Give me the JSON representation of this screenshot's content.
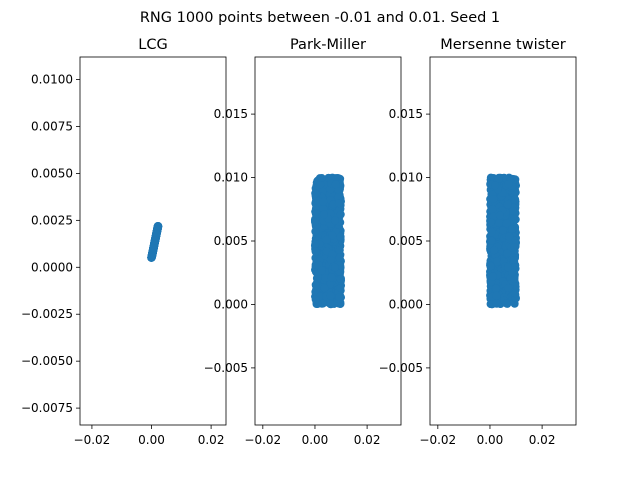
{
  "figure": {
    "suptitle": "RNG 1000 points between -0.01 and 0.01. Seed 1"
  },
  "style": {
    "marker_color": "#1f77b4",
    "axis_color": "#000000",
    "background": "#ffffff"
  },
  "chart_data": [
    {
      "type": "scatter",
      "title": "LCG",
      "xlabel": "",
      "ylabel": "",
      "xlim": [
        -0.024,
        0.025
      ],
      "ylim": [
        -0.0084,
        0.0112
      ],
      "xticks": [
        -0.02,
        0.0,
        0.02
      ],
      "xtick_labels": [
        "−0.02",
        "0.00",
        "0.02"
      ],
      "yticks": [
        -0.0075,
        -0.005,
        -0.0025,
        0.0,
        0.0025,
        0.005,
        0.0075,
        0.01
      ],
      "ytick_labels": [
        "−0.0075",
        "−0.0050",
        "−0.0025",
        "0.0000",
        "0.0025",
        "0.0050",
        "0.0075",
        "0.0100"
      ],
      "grid": false,
      "series": [
        {
          "points_count": 1000,
          "x_range": [
            0.0,
            0.0022
          ],
          "y_range": [
            0.0005,
            0.0022
          ],
          "shape": "diagonal-line"
        }
      ]
    },
    {
      "type": "scatter",
      "title": "Park-Miller",
      "xlabel": "",
      "ylabel": "",
      "xlim": [
        -0.023,
        0.033
      ],
      "ylim": [
        -0.0095,
        0.0195
      ],
      "xticks": [
        -0.02,
        0.0,
        0.02
      ],
      "xtick_labels": [
        "−0.02",
        "0.00",
        "0.02"
      ],
      "yticks": [
        -0.005,
        0.0,
        0.005,
        0.01,
        0.015
      ],
      "ytick_labels": [
        "−0.005",
        "0.000",
        "0.005",
        "0.010",
        "0.015"
      ],
      "grid": false,
      "series": [
        {
          "points_count": 1000,
          "x_range": [
            0.0,
            0.01
          ],
          "y_range": [
            0.0,
            0.01
          ],
          "shape": "uniform-block"
        }
      ]
    },
    {
      "type": "scatter",
      "title": "Mersenne twister",
      "xlabel": "",
      "ylabel": "",
      "xlim": [
        -0.023,
        0.033
      ],
      "ylim": [
        -0.0095,
        0.0195
      ],
      "xticks": [
        -0.02,
        0.0,
        0.02
      ],
      "xtick_labels": [
        "−0.02",
        "0.00",
        "0.02"
      ],
      "yticks": [
        -0.005,
        0.0,
        0.005,
        0.01,
        0.015
      ],
      "ytick_labels": [
        "−0.005",
        "0.000",
        "0.005",
        "0.010",
        "0.015"
      ],
      "grid": false,
      "series": [
        {
          "points_count": 1000,
          "x_range": [
            0.0,
            0.01
          ],
          "y_range": [
            0.0,
            0.01
          ],
          "shape": "uniform-block"
        }
      ]
    }
  ]
}
